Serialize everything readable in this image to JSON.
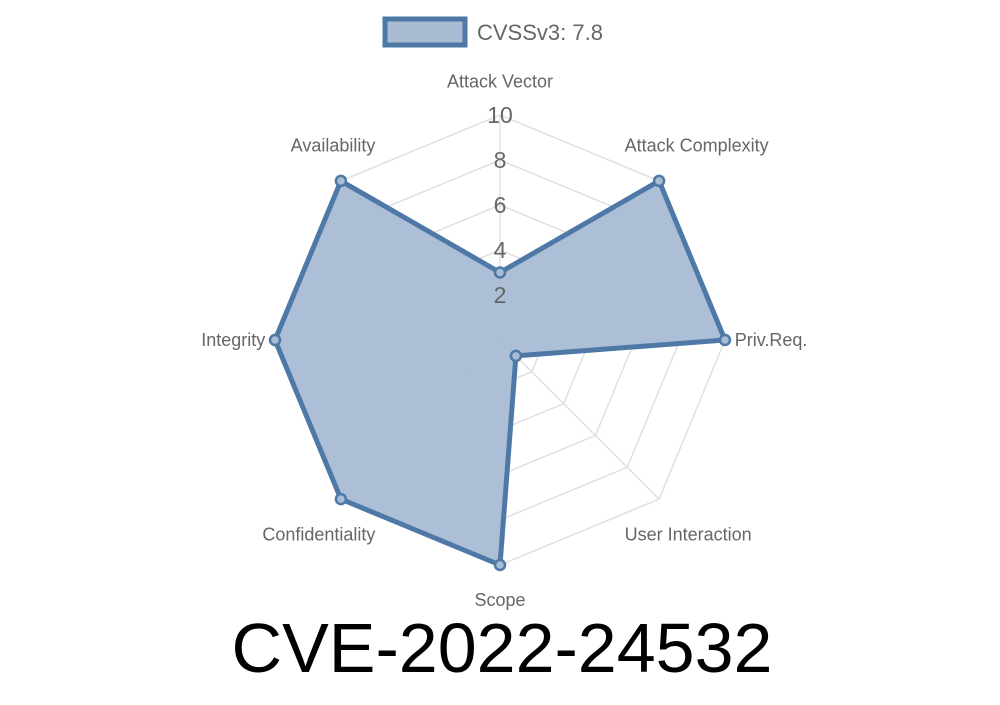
{
  "chart_data": {
    "type": "radar",
    "title": "CVE-2022-24532",
    "legend": {
      "label": "CVSSv3: 7.8",
      "placement": "top"
    },
    "axes": [
      "Attack Vector",
      "Attack Complexity",
      "Priv.Req.",
      "User Interaction",
      "Scope",
      "Confidentiality",
      "Integrity",
      "Availability"
    ],
    "series": [
      {
        "name": "CVSSv3: 7.8",
        "values": [
          3,
          10,
          10,
          1,
          10,
          10,
          10,
          10
        ]
      }
    ],
    "rlim": [
      0,
      10
    ],
    "ticks": [
      2,
      4,
      6,
      8,
      10
    ],
    "grid": true,
    "colors": {
      "stroke": "#4e79a7",
      "fill": "#a8bcd4",
      "grid": "#e0e0e0",
      "label": "#666666"
    }
  }
}
